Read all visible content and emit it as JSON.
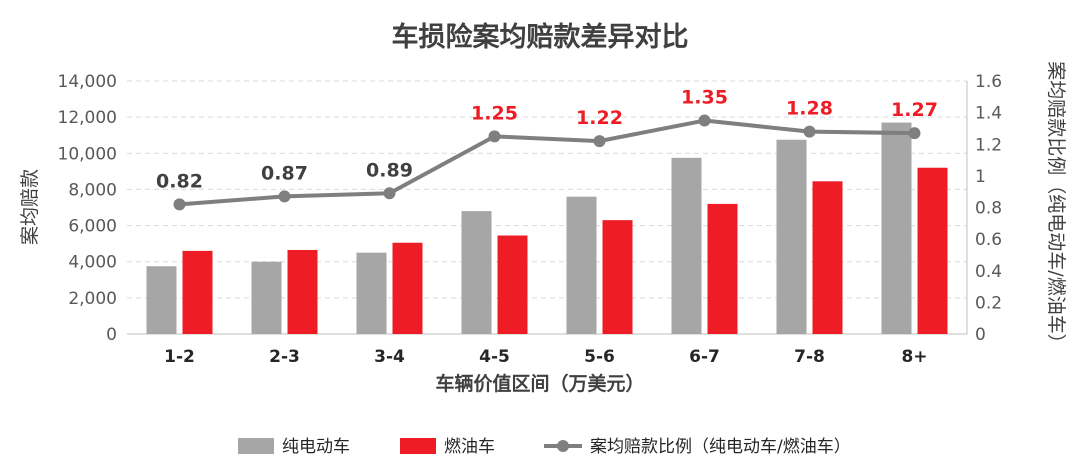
{
  "chart_data": {
    "type": "bar",
    "title": "车损险案均赔款差异对比",
    "xlabel": "车辆价值区间（万美元）",
    "ylabel": "案均赔款",
    "y2label": "案均赔款比例（纯电动车/燃油车）",
    "categories": [
      "1-2",
      "2-3",
      "3-4",
      "4-5",
      "5-6",
      "6-7",
      "7-8",
      "8+"
    ],
    "ylim": [
      0,
      14000
    ],
    "yticks": [
      "0",
      "2,000",
      "4,000",
      "6,000",
      "8,000",
      "10,000",
      "12,000",
      "14,000"
    ],
    "y2lim": [
      0,
      1.6
    ],
    "y2ticks": [
      "0",
      "0.2",
      "0.4",
      "0.6",
      "0.8",
      "1",
      "1.2",
      "1.4",
      "1.6"
    ],
    "grid": true,
    "legend_position": "bottom",
    "series": [
      {
        "name": "纯电动车",
        "type": "bar",
        "axis": "left",
        "color": "#a6a6a6",
        "values": [
          3750,
          4000,
          4500,
          6800,
          7600,
          9750,
          10750,
          11700
        ]
      },
      {
        "name": "燃油车",
        "type": "bar",
        "axis": "left",
        "color": "#ee1c25",
        "values": [
          4600,
          4650,
          5050,
          5450,
          6300,
          7200,
          8450,
          9200
        ]
      },
      {
        "name": "案均赔款比例（纯电动车/燃油车）",
        "type": "line",
        "axis": "right",
        "color": "#7f7f7f",
        "values": [
          0.82,
          0.87,
          0.89,
          1.25,
          1.22,
          1.35,
          1.28,
          1.27
        ],
        "labels": [
          "0.82",
          "0.87",
          "0.89",
          "1.25",
          "1.22",
          "1.35",
          "1.28",
          "1.27"
        ],
        "label_colors": [
          "#404040",
          "#404040",
          "#404040",
          "#ee1c25",
          "#ee1c25",
          "#ee1c25",
          "#ee1c25",
          "#ee1c25"
        ]
      }
    ]
  }
}
